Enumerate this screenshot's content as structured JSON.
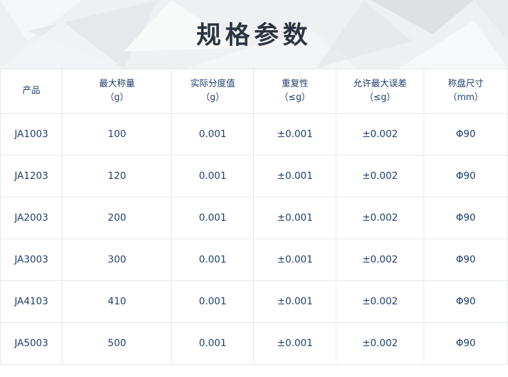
{
  "title": "规格参数",
  "headers": [
    {
      "line1": "产品",
      "line2": ""
    },
    {
      "line1": "最大称量",
      "line2": "（g）"
    },
    {
      "line1": "实际分度值",
      "line2": "（g）"
    },
    {
      "line1": "重复性",
      "line2": "（≤g）"
    },
    {
      "line1": "允许最大误差",
      "line2": "（≤g）"
    },
    {
      "line1": "称盘尺寸",
      "line2": "（mm）"
    }
  ],
  "rows": [
    [
      "JA1003",
      "100",
      "0.001",
      "±0.001",
      "±0.002",
      "Φ90"
    ],
    [
      "JA1203",
      "120",
      "0.001",
      "±0.001",
      "±0.002",
      "Φ90"
    ],
    [
      "JA2003",
      "200",
      "0.001",
      "±0.001",
      "±0.002",
      "Φ90"
    ],
    [
      "JA3003",
      "300",
      "0.001",
      "±0.001",
      "±0.002",
      "Φ90"
    ],
    [
      "JA4103",
      "410",
      "0.001",
      "±0.001",
      "±0.002",
      "Φ90"
    ],
    [
      "JA5003",
      "500",
      "0.001",
      "±0.001",
      "±0.002",
      "Φ90"
    ]
  ]
}
